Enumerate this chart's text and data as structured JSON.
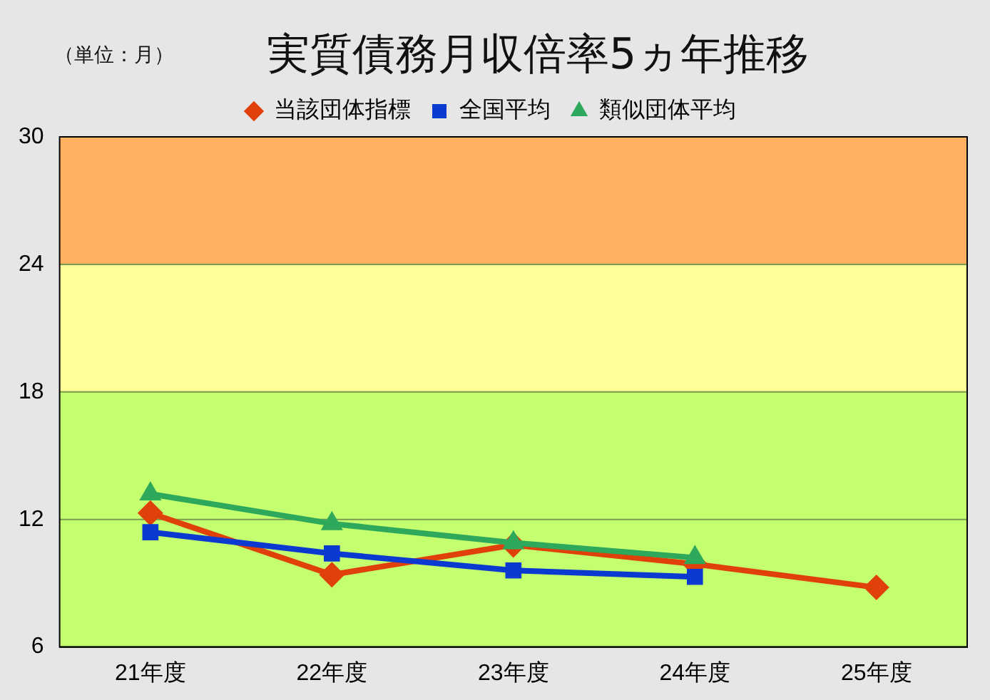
{
  "chart_data": {
    "type": "line",
    "title": "実質債務月収倍率5ヵ年推移",
    "annotations": [
      "（単位：月）"
    ],
    "categories": [
      "21年度",
      "22年度",
      "23年度",
      "24年度",
      "25年度"
    ],
    "series": [
      {
        "name": "当該団体指標",
        "color": "#e0400a",
        "values": [
          12.3,
          9.4,
          10.8,
          9.9,
          8.8
        ],
        "marker": "diamond"
      },
      {
        "name": "全国平均",
        "color": "#0a3ad0",
        "values": [
          11.4,
          10.4,
          9.6,
          9.3,
          null
        ],
        "marker": "square"
      },
      {
        "name": "類似団体平均",
        "color": "#2ea85a",
        "values": [
          13.2,
          11.8,
          10.9,
          10.2,
          null
        ],
        "marker": "triangle"
      }
    ],
    "ylim": [
      6,
      30
    ],
    "yticks": [
      6,
      12,
      18,
      24,
      30
    ],
    "grid": "y",
    "legend": "top",
    "line_style": "solid",
    "bands": [
      {
        "axis": "y",
        "from": 6,
        "to": 18,
        "color": "#c4ff70"
      },
      {
        "axis": "y",
        "from": 18,
        "to": 24,
        "color": "#ffff99"
      },
      {
        "axis": "y",
        "from": 24,
        "to": 30,
        "color": "#ffb060"
      }
    ]
  }
}
